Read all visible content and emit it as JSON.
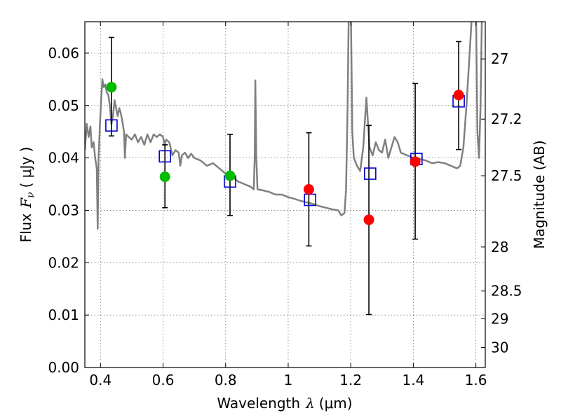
{
  "chart_data": {
    "type": "scatter",
    "title": "",
    "xlabel": "Wavelength",
    "xlabel_symbol": "λ",
    "xlabel_unit": "(μm)",
    "ylabel": "Flux",
    "ylabel_symbol": "F",
    "ylabel_subscript": "ν",
    "ylabel_unit": "( μJy )",
    "y2label": "Magnitude (AB)",
    "xlim": [
      0.35,
      1.63
    ],
    "ylim": [
      0.0,
      0.066
    ],
    "grid": true,
    "x_ticks": [
      0.4,
      0.6,
      0.8,
      1.0,
      1.2,
      1.4,
      1.6
    ],
    "x_tick_labels": [
      "0.4",
      "0.6",
      "0.8",
      "1",
      "1.2",
      "1.4",
      "1.6"
    ],
    "y_ticks": [
      0.0,
      0.01,
      0.02,
      0.03,
      0.04,
      0.05,
      0.06
    ],
    "y_tick_labels": [
      "0.00",
      "0.01",
      "0.02",
      "0.03",
      "0.04",
      "0.05",
      "0.06"
    ],
    "y2_ticks": [
      {
        "label": "27",
        "flux": 0.0589
      },
      {
        "label": "27.2",
        "flux": 0.0474
      },
      {
        "label": "27.5",
        "flux": 0.0366
      },
      {
        "label": "28",
        "flux": 0.023
      },
      {
        "label": "28.5",
        "flux": 0.0146
      },
      {
        "label": "29",
        "flux": 0.0093
      },
      {
        "label": "30",
        "flux": 0.0038
      }
    ],
    "colors": {
      "template": "#808080",
      "model": "#0000cc",
      "green": "#00bb00",
      "red": "#ff0000",
      "errorbar": "#000000"
    },
    "template_spectrum": [
      [
        0.35,
        0.0415
      ],
      [
        0.356,
        0.0465
      ],
      [
        0.362,
        0.044
      ],
      [
        0.368,
        0.046
      ],
      [
        0.372,
        0.042
      ],
      [
        0.378,
        0.043
      ],
      [
        0.383,
        0.04
      ],
      [
        0.388,
        0.038
      ],
      [
        0.391,
        0.0265
      ],
      [
        0.394,
        0.04
      ],
      [
        0.398,
        0.046
      ],
      [
        0.402,
        0.051
      ],
      [
        0.406,
        0.055
      ],
      [
        0.41,
        0.0535
      ],
      [
        0.415,
        0.054
      ],
      [
        0.42,
        0.0525
      ],
      [
        0.425,
        0.052
      ],
      [
        0.43,
        0.05
      ],
      [
        0.435,
        0.0465
      ],
      [
        0.44,
        0.048
      ],
      [
        0.445,
        0.051
      ],
      [
        0.45,
        0.0495
      ],
      [
        0.455,
        0.048
      ],
      [
        0.46,
        0.0495
      ],
      [
        0.465,
        0.0485
      ],
      [
        0.47,
        0.047
      ],
      [
        0.475,
        0.045
      ],
      [
        0.478,
        0.04
      ],
      [
        0.482,
        0.0445
      ],
      [
        0.49,
        0.044
      ],
      [
        0.5,
        0.0435
      ],
      [
        0.51,
        0.0445
      ],
      [
        0.52,
        0.043
      ],
      [
        0.53,
        0.044
      ],
      [
        0.54,
        0.0425
      ],
      [
        0.55,
        0.0445
      ],
      [
        0.56,
        0.043
      ],
      [
        0.57,
        0.0445
      ],
      [
        0.58,
        0.044
      ],
      [
        0.59,
        0.0445
      ],
      [
        0.6,
        0.044
      ],
      [
        0.605,
        0.0425
      ],
      [
        0.61,
        0.0435
      ],
      [
        0.62,
        0.043
      ],
      [
        0.63,
        0.0405
      ],
      [
        0.64,
        0.0415
      ],
      [
        0.65,
        0.041
      ],
      [
        0.655,
        0.0385
      ],
      [
        0.66,
        0.0405
      ],
      [
        0.67,
        0.041
      ],
      [
        0.68,
        0.04
      ],
      [
        0.69,
        0.0408
      ],
      [
        0.7,
        0.04
      ],
      [
        0.72,
        0.0395
      ],
      [
        0.74,
        0.0385
      ],
      [
        0.76,
        0.039
      ],
      [
        0.78,
        0.038
      ],
      [
        0.8,
        0.037
      ],
      [
        0.82,
        0.0365
      ],
      [
        0.84,
        0.0355
      ],
      [
        0.86,
        0.035
      ],
      [
        0.88,
        0.0345
      ],
      [
        0.89,
        0.034
      ],
      [
        0.893,
        0.04
      ],
      [
        0.895,
        0.0548
      ],
      [
        0.898,
        0.04
      ],
      [
        0.902,
        0.034
      ],
      [
        0.92,
        0.0338
      ],
      [
        0.94,
        0.0335
      ],
      [
        0.96,
        0.033
      ],
      [
        0.98,
        0.033
      ],
      [
        1.0,
        0.0325
      ],
      [
        1.02,
        0.0322
      ],
      [
        1.04,
        0.0318
      ],
      [
        1.06,
        0.0315
      ],
      [
        1.08,
        0.0312
      ],
      [
        1.1,
        0.0308
      ],
      [
        1.12,
        0.0305
      ],
      [
        1.14,
        0.0302
      ],
      [
        1.16,
        0.03
      ],
      [
        1.17,
        0.029
      ],
      [
        1.18,
        0.0295
      ],
      [
        1.185,
        0.034
      ],
      [
        1.19,
        0.05
      ],
      [
        1.194,
        0.07
      ],
      [
        1.2,
        0.07
      ],
      [
        1.205,
        0.045
      ],
      [
        1.21,
        0.04
      ],
      [
        1.22,
        0.0385
      ],
      [
        1.23,
        0.0375
      ],
      [
        1.24,
        0.042
      ],
      [
        1.25,
        0.0515
      ],
      [
        1.26,
        0.042
      ],
      [
        1.27,
        0.0405
      ],
      [
        1.28,
        0.043
      ],
      [
        1.29,
        0.0415
      ],
      [
        1.3,
        0.041
      ],
      [
        1.31,
        0.0435
      ],
      [
        1.32,
        0.04
      ],
      [
        1.33,
        0.042
      ],
      [
        1.34,
        0.044
      ],
      [
        1.35,
        0.043
      ],
      [
        1.36,
        0.041
      ],
      [
        1.38,
        0.0405
      ],
      [
        1.4,
        0.04
      ],
      [
        1.42,
        0.0398
      ],
      [
        1.44,
        0.0395
      ],
      [
        1.46,
        0.039
      ],
      [
        1.48,
        0.0392
      ],
      [
        1.5,
        0.039
      ],
      [
        1.52,
        0.0385
      ],
      [
        1.54,
        0.038
      ],
      [
        1.55,
        0.0385
      ],
      [
        1.56,
        0.042
      ],
      [
        1.57,
        0.05
      ],
      [
        1.58,
        0.06
      ],
      [
        1.59,
        0.07
      ],
      [
        1.6,
        0.07
      ],
      [
        1.605,
        0.045
      ],
      [
        1.61,
        0.04
      ],
      [
        1.615,
        0.05
      ],
      [
        1.62,
        0.07
      ]
    ],
    "model_points": [
      {
        "x": 0.435,
        "y": 0.0462
      },
      {
        "x": 0.606,
        "y": 0.0403
      },
      {
        "x": 0.814,
        "y": 0.0355
      },
      {
        "x": 1.07,
        "y": 0.032
      },
      {
        "x": 1.262,
        "y": 0.037
      },
      {
        "x": 1.41,
        "y": 0.0398
      },
      {
        "x": 1.545,
        "y": 0.0508
      }
    ],
    "observed_points": [
      {
        "x": 0.435,
        "y": 0.0535,
        "color": "green",
        "yerr_low": 0.0442,
        "yerr_high": 0.063
      },
      {
        "x": 0.606,
        "y": 0.0364,
        "color": "green",
        "yerr_low": 0.0305,
        "yerr_high": 0.0425
      },
      {
        "x": 0.814,
        "y": 0.0366,
        "color": "green",
        "yerr_low": 0.029,
        "yerr_high": 0.0445
      },
      {
        "x": 1.066,
        "y": 0.034,
        "color": "red",
        "yerr_low": 0.0232,
        "yerr_high": 0.0448
      },
      {
        "x": 1.258,
        "y": 0.0282,
        "color": "red",
        "yerr_low": 0.0101,
        "yerr_high": 0.0462
      },
      {
        "x": 1.406,
        "y": 0.0393,
        "color": "red",
        "yerr_low": 0.0245,
        "yerr_high": 0.0542
      },
      {
        "x": 1.545,
        "y": 0.052,
        "color": "red",
        "yerr_low": 0.0416,
        "yerr_high": 0.0622
      }
    ]
  }
}
